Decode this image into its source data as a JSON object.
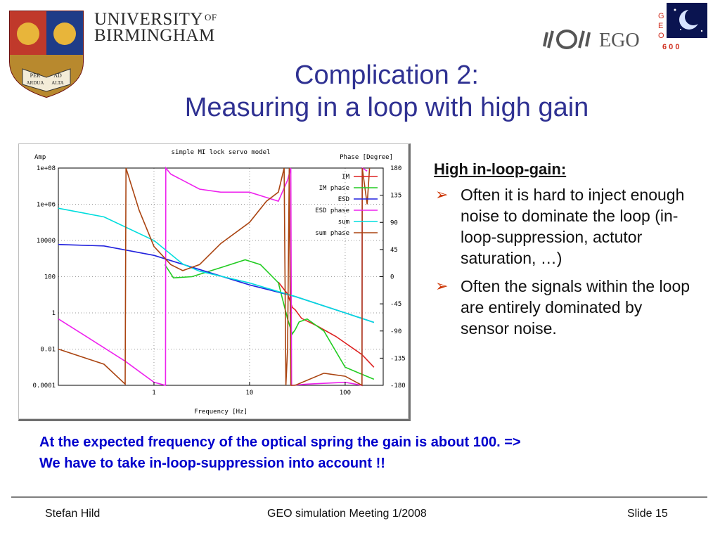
{
  "header": {
    "university_line1": "UNIVERSITY",
    "university_of": "OF",
    "university_line2": "BIRMINGHAM",
    "crest_motto": [
      "PER",
      "AD",
      "ARDUA",
      "ALTA"
    ],
    "ego_text": "EGO",
    "geo_letters": [
      "G",
      "E",
      "O"
    ],
    "geo_number": "6 0 0"
  },
  "title": {
    "line1": "Complication 2:",
    "line2": "Measuring in a loop with high gain"
  },
  "chart_data": {
    "type": "line",
    "title": "simple MI lock servo model",
    "xlabel": "Frequency [Hz]",
    "ylabel_left": "Amp",
    "ylabel_right": "Phase [Degree]",
    "x_scale": "log",
    "xlim": [
      0.1,
      250
    ],
    "x_ticks": [
      {
        "v": 1,
        "label": "1"
      },
      {
        "v": 10,
        "label": "10"
      },
      {
        "v": 100,
        "label": "100"
      }
    ],
    "y_scale": "log",
    "ylim": [
      0.0001,
      100000000
    ],
    "y_ticks": [
      {
        "v": 100000000,
        "label": "1e+08"
      },
      {
        "v": 1000000,
        "label": "1e+06"
      },
      {
        "v": 10000,
        "label": "10000"
      },
      {
        "v": 100,
        "label": "100"
      },
      {
        "v": 1,
        "label": "1"
      },
      {
        "v": 0.01,
        "label": "0.01"
      },
      {
        "v": 0.0001,
        "label": "0.0001"
      }
    ],
    "y2_range": [
      -180,
      180
    ],
    "y2_ticks": [
      {
        "v": 180,
        "label": "180"
      },
      {
        "v": 135,
        "label": "135"
      },
      {
        "v": 90,
        "label": "90"
      },
      {
        "v": 45,
        "label": "45"
      },
      {
        "v": 0,
        "label": "0"
      },
      {
        "v": -45,
        "label": "-45"
      },
      {
        "v": -90,
        "label": "-90"
      },
      {
        "v": -135,
        "label": "-135"
      },
      {
        "v": -180,
        "label": "-180"
      }
    ],
    "grid": true,
    "legend_position": "top-right",
    "series": [
      {
        "name": "IM",
        "color": "#dd2222",
        "axis": "amp",
        "points": [
          [
            20,
            50
          ],
          [
            25,
            11
          ],
          [
            28,
            2
          ],
          [
            30,
            1.5
          ],
          [
            35,
            0.5
          ],
          [
            50,
            0.2
          ],
          [
            80,
            0.05
          ],
          [
            150,
            0.005
          ],
          [
            200,
            0.001
          ]
        ]
      },
      {
        "name": "IM phase",
        "color": "#22cc22",
        "axis": "phase",
        "points": [
          [
            1.3,
            20
          ],
          [
            1.6,
            -2
          ],
          [
            2.5,
            0
          ],
          [
            5,
            15
          ],
          [
            9,
            28
          ],
          [
            13,
            20
          ],
          [
            20,
            -10
          ],
          [
            25,
            -70
          ],
          [
            28,
            -95
          ],
          [
            30,
            -88
          ],
          [
            33,
            -75
          ],
          [
            40,
            -70
          ],
          [
            60,
            -90
          ],
          [
            100,
            -150
          ],
          [
            200,
            -170
          ]
        ]
      },
      {
        "name": "ESD",
        "color": "#2222dd",
        "axis": "amp",
        "points": [
          [
            0.1,
            6000
          ],
          [
            0.3,
            5000
          ],
          [
            1,
            1500
          ],
          [
            3,
            250
          ],
          [
            10,
            35
          ],
          [
            30,
            8
          ],
          [
            100,
            1
          ],
          [
            200,
            0.3
          ]
        ]
      },
      {
        "name": "ESD phase",
        "color": "#ee22ee",
        "axis": "phase",
        "points": [
          [
            0.1,
            -70
          ],
          [
            0.2,
            -100
          ],
          [
            0.5,
            -140
          ],
          [
            1,
            -175
          ],
          [
            1.32,
            -180
          ],
          [
            1.33,
            180
          ],
          [
            1.5,
            170
          ],
          [
            3,
            145
          ],
          [
            5,
            140
          ],
          [
            10,
            140
          ],
          [
            20,
            125
          ],
          [
            25,
            160
          ],
          [
            27,
            180
          ],
          [
            27.5,
            -180
          ],
          [
            40,
            -178
          ],
          [
            100,
            -175
          ],
          [
            150,
            -180
          ],
          [
            151,
            180
          ],
          [
            170,
            175
          ]
        ]
      },
      {
        "name": "sum",
        "color": "#00dddd",
        "axis": "amp",
        "points": [
          [
            0.1,
            600000
          ],
          [
            0.3,
            200000
          ],
          [
            1,
            10000
          ],
          [
            2,
            500
          ],
          [
            3,
            200
          ],
          [
            10,
            45
          ],
          [
            20,
            15
          ],
          [
            30,
            8
          ],
          [
            100,
            1
          ],
          [
            200,
            0.3
          ]
        ]
      },
      {
        "name": "sum phase",
        "color": "#aa4411",
        "axis": "phase",
        "points": [
          [
            0.1,
            -120
          ],
          [
            0.3,
            -145
          ],
          [
            0.5,
            -178
          ],
          [
            0.51,
            180
          ],
          [
            0.7,
            110
          ],
          [
            1,
            50
          ],
          [
            1.5,
            20
          ],
          [
            2,
            10
          ],
          [
            3,
            20
          ],
          [
            5,
            55
          ],
          [
            10,
            90
          ],
          [
            15,
            125
          ],
          [
            20,
            140
          ],
          [
            23,
            180
          ],
          [
            24,
            -180
          ],
          [
            25,
            -120
          ],
          [
            26,
            180
          ],
          [
            27,
            -180
          ],
          [
            30,
            -180
          ],
          [
            60,
            -160
          ],
          [
            100,
            -165
          ],
          [
            150,
            -180
          ],
          [
            151,
            180
          ],
          [
            170,
            120
          ],
          [
            180,
            180
          ]
        ]
      }
    ]
  },
  "bullets": {
    "heading": "High in-loop-gain:",
    "items": [
      "Often it is hard to inject enough noise to dominate the loop (in-loop-suppression, actutor saturation, …)",
      "Often the signals within the loop are entirely dominated by sensor noise."
    ]
  },
  "conclusion": {
    "line1": "At the expected frequency of the optical spring the gain is about 100. =>",
    "line2": "We have to take in-loop-suppression into account !!"
  },
  "footer": {
    "author": "Stefan Hild",
    "meeting": "GEO simulation Meeting 1/2008",
    "slide": "Slide 15"
  },
  "colors": {
    "title": "#2f3192",
    "conclusion": "#0000cc",
    "bullet_arrow": "#cc3300"
  }
}
